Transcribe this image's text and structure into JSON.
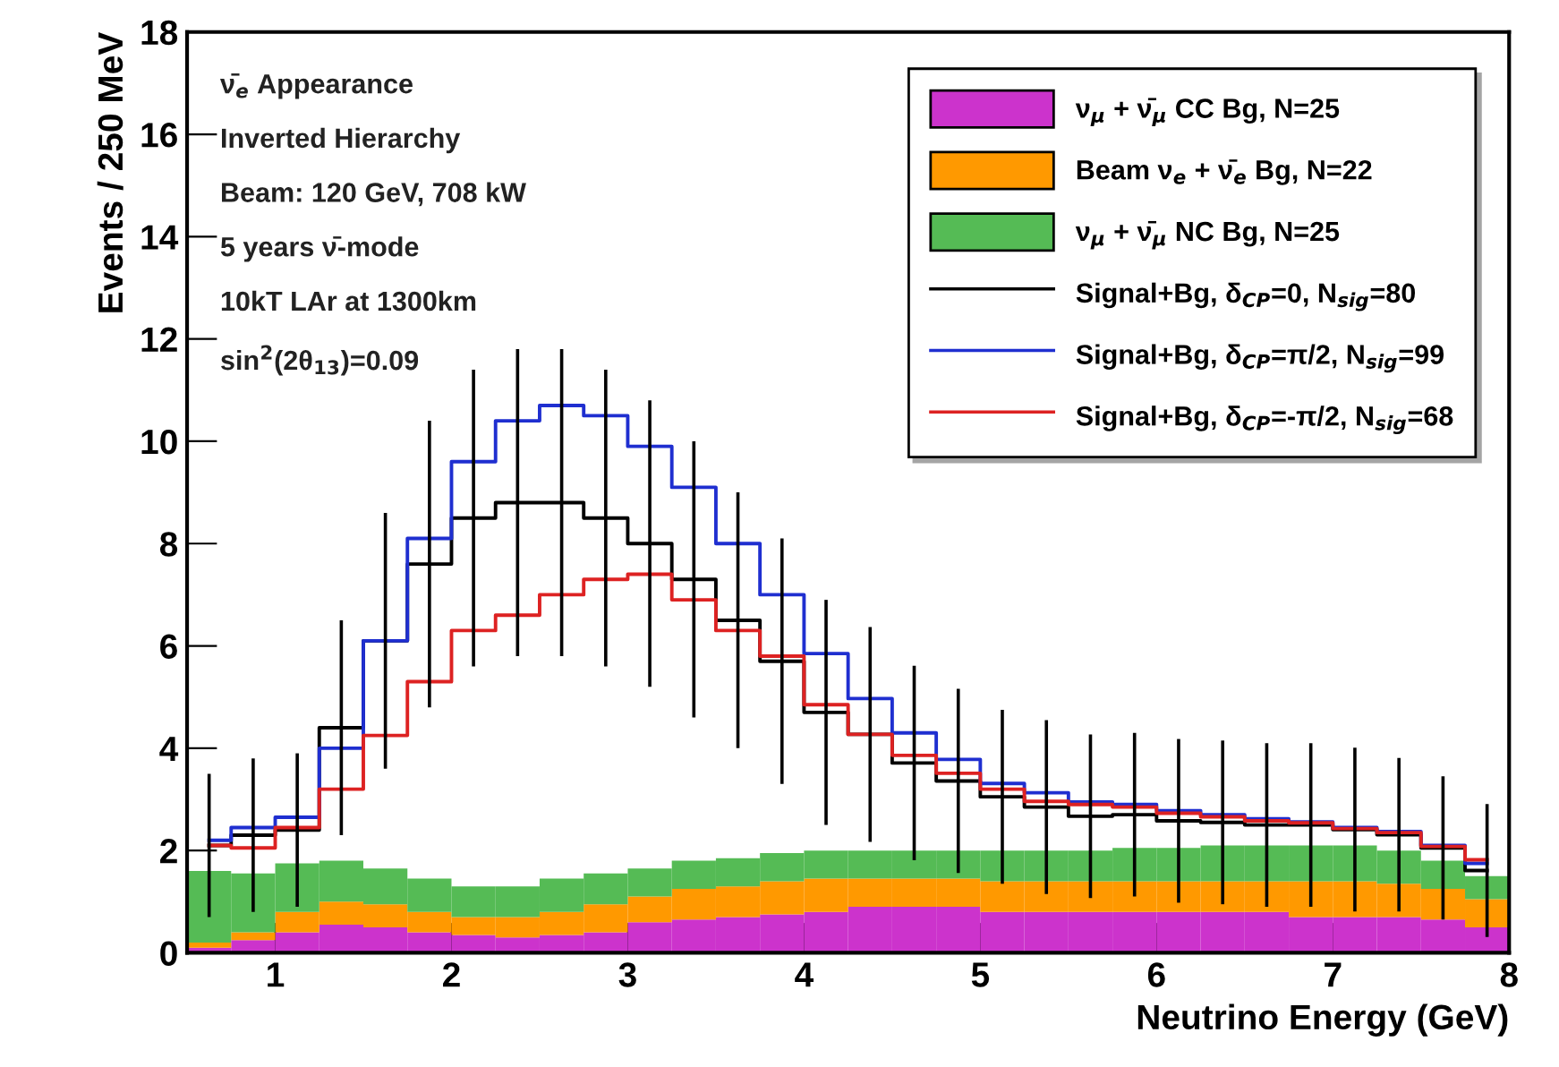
{
  "chart_data": {
    "type": "bar",
    "xlabel": "Neutrino Energy (GeV)",
    "ylabel": "Events / 250 MeV",
    "x": [
      0.625,
      0.875,
      1.125,
      1.375,
      1.625,
      1.875,
      2.125,
      2.375,
      2.625,
      2.875,
      3.125,
      3.375,
      3.625,
      3.875,
      4.125,
      4.375,
      4.625,
      4.875,
      5.125,
      5.375,
      5.625,
      5.875,
      6.125,
      6.375,
      6.625,
      6.875,
      7.125,
      7.375,
      7.625,
      7.875
    ],
    "stacked": true,
    "series": [
      {
        "name": "ν$_{μ}$ + ν̄$_{μ}$ CC Bg, N=25",
        "color": "#cc33cc",
        "values": [
          0.1,
          0.25,
          0.4,
          0.55,
          0.5,
          0.4,
          0.35,
          0.3,
          0.35,
          0.4,
          0.6,
          0.65,
          0.7,
          0.75,
          0.8,
          0.9,
          0.9,
          0.9,
          0.8,
          0.8,
          0.8,
          0.8,
          0.8,
          0.8,
          0.8,
          0.7,
          0.7,
          0.7,
          0.65,
          0.5
        ]
      },
      {
        "name": "Beam ν$_{e}$ + ν̄$_{e}$ Bg, N=22",
        "color": "#ff9900",
        "values": [
          0.1,
          0.15,
          0.4,
          0.45,
          0.45,
          0.4,
          0.35,
          0.4,
          0.45,
          0.55,
          0.5,
          0.6,
          0.6,
          0.65,
          0.65,
          0.55,
          0.55,
          0.55,
          0.6,
          0.6,
          0.6,
          0.6,
          0.6,
          0.6,
          0.6,
          0.7,
          0.7,
          0.65,
          0.6,
          0.55
        ]
      },
      {
        "name": "ν$_{μ}$ + ν̄$_{μ}$ NC Bg, N=25",
        "color": "#55bb55",
        "values": [
          1.4,
          1.15,
          0.95,
          0.8,
          0.7,
          0.65,
          0.6,
          0.6,
          0.65,
          0.6,
          0.55,
          0.55,
          0.55,
          0.55,
          0.55,
          0.55,
          0.55,
          0.55,
          0.6,
          0.6,
          0.6,
          0.65,
          0.65,
          0.7,
          0.7,
          0.7,
          0.7,
          0.65,
          0.55,
          0.45
        ]
      },
      {
        "name": "Signal+Bg, δ$_{CP}$=0, N$_{sig}$=80",
        "type": "step",
        "color": "#000000",
        "x": [
          0.625,
          0.875,
          1.125,
          1.375,
          1.625,
          1.875,
          2.125,
          2.375,
          2.625,
          2.875,
          3.125,
          3.375,
          3.625,
          3.875,
          4.125,
          4.375,
          4.625,
          4.875,
          5.125,
          5.375,
          5.625,
          5.875,
          6.125,
          6.375,
          6.625,
          6.875,
          7.125,
          7.375,
          7.625,
          7.875
        ],
        "values": [
          2.1,
          2.3,
          2.4,
          4.4,
          6.1,
          7.6,
          8.5,
          8.8,
          8.8,
          8.5,
          8.0,
          7.3,
          6.5,
          5.7,
          4.7,
          4.27,
          3.71,
          3.36,
          3.05,
          2.85,
          2.67,
          2.7,
          2.58,
          2.55,
          2.5,
          2.5,
          2.41,
          2.31,
          2.05,
          1.61
        ],
        "errors": [
          1.4,
          1.5,
          1.5,
          2.1,
          2.5,
          2.8,
          2.9,
          3.0,
          3.0,
          2.9,
          2.8,
          2.7,
          2.5,
          2.4,
          2.2,
          2.1,
          1.9,
          1.8,
          1.7,
          1.7,
          1.6,
          1.6,
          1.6,
          1.6,
          1.6,
          1.6,
          1.6,
          1.5,
          1.4,
          1.3
        ]
      },
      {
        "name": "Signal+Bg, δ$_{CP}$=π/2, N$_{sig}$=99",
        "type": "step",
        "color": "#1f2fd0",
        "x": [
          0.625,
          0.875,
          1.125,
          1.375,
          1.625,
          1.875,
          2.125,
          2.375,
          2.625,
          2.875,
          3.125,
          3.375,
          3.625,
          3.875,
          4.125,
          4.375,
          4.625,
          4.875,
          5.125,
          5.375,
          5.625,
          5.875,
          6.125,
          6.375,
          6.625,
          6.875,
          7.125,
          7.375,
          7.625,
          7.875
        ],
        "values": [
          2.2,
          2.45,
          2.65,
          4.0,
          6.1,
          8.1,
          9.6,
          10.4,
          10.7,
          10.5,
          9.9,
          9.1,
          8.0,
          7.0,
          5.85,
          4.97,
          4.3,
          3.78,
          3.31,
          3.13,
          2.95,
          2.9,
          2.78,
          2.7,
          2.62,
          2.56,
          2.45,
          2.37,
          2.1,
          1.75
        ]
      },
      {
        "name": "Signal+Bg, δ$_{CP}$=-π/2, N$_{sig}$=68",
        "type": "step",
        "color": "#dd2222",
        "x": [
          0.625,
          0.875,
          1.125,
          1.375,
          1.625,
          1.875,
          2.125,
          2.375,
          2.625,
          2.875,
          3.125,
          3.375,
          3.625,
          3.875,
          4.125,
          4.375,
          4.625,
          4.875,
          5.125,
          5.375,
          5.625,
          5.875,
          6.125,
          6.375,
          6.625,
          6.875,
          7.125,
          7.375,
          7.625,
          7.875
        ],
        "values": [
          2.1,
          2.05,
          2.45,
          3.2,
          4.25,
          5.3,
          6.3,
          6.6,
          7.0,
          7.3,
          7.4,
          6.9,
          6.3,
          5.8,
          4.85,
          4.27,
          3.86,
          3.51,
          3.2,
          2.96,
          2.9,
          2.85,
          2.73,
          2.66,
          2.58,
          2.54,
          2.43,
          2.35,
          2.08,
          1.82
        ]
      }
    ],
    "xlim": [
      0.5,
      8
    ],
    "ylim": [
      0,
      18
    ],
    "xticks": [
      1,
      2,
      3,
      4,
      5,
      6,
      7,
      8
    ],
    "yticks": [
      0,
      2,
      4,
      6,
      8,
      10,
      12,
      14,
      16,
      18
    ],
    "grid": false,
    "legend": "top right",
    "annotations": [
      "ν̄$_{e}$ Appearance",
      "Inverted Hierarchy",
      "Beam: 120 GeV, 708 kW",
      "5 years ν̄-mode",
      "10kT LAr at 1300km",
      "sin$^{2}$(2θ$_{13}$)=0.09"
    ]
  }
}
